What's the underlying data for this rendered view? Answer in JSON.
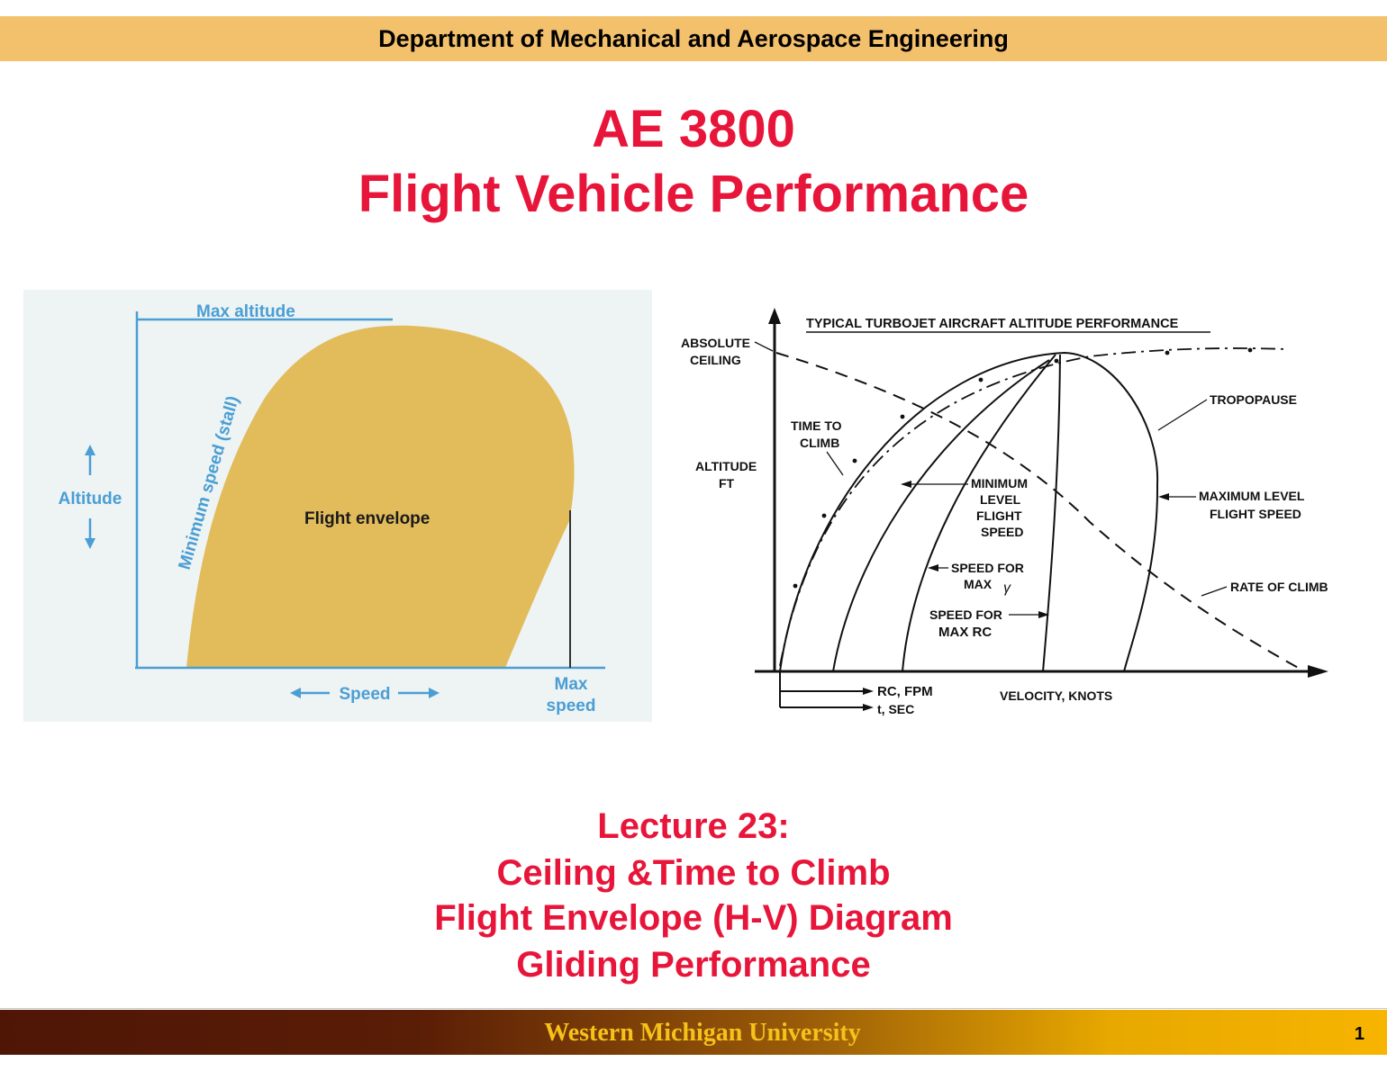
{
  "header": {
    "text": "Department of Mechanical and Aerospace Engineering"
  },
  "title": {
    "course": "AE 3800",
    "name": "Flight Vehicle Performance"
  },
  "fig_envelope": {
    "max_altitude": "Max altitude",
    "altitude": "Altitude",
    "min_speed": "Minimum speed (stall)",
    "envelope": "Flight envelope",
    "speed": "Speed",
    "max_speed_1": "Max",
    "max_speed_2": "speed",
    "fill_color": "#e2bc5b",
    "label_color": "#4a9ed4"
  },
  "fig_turbojet": {
    "title": "TYPICAL TURBOJET AIRCRAFT ALTITUDE PERFORMANCE",
    "absolute_ceiling_1": "ABSOLUTE",
    "absolute_ceiling_2": "CEILING",
    "time_to_climb_1": "TIME TO",
    "time_to_climb_2": "CLIMB",
    "altitude_1": "ALTITUDE",
    "altitude_2": "FT",
    "min_level_1": "MINIMUM",
    "min_level_2": "LEVEL",
    "min_level_3": "FLIGHT",
    "min_level_4": "SPEED",
    "max_gamma_1": "SPEED FOR",
    "max_gamma_2": "MAX",
    "gamma": "γ",
    "max_rc_1": "SPEED FOR",
    "max_rc_2": "MAX RC",
    "tropopause": "TROPOPAUSE",
    "max_level_1": "MAXIMUM LEVEL",
    "max_level_2": "FLIGHT SPEED",
    "rate_of_climb": "RATE OF CLIMB",
    "rc_fpm": "RC, FPM",
    "t_sec": "t, SEC",
    "velocity": "VELOCITY, KNOTS"
  },
  "lecture": {
    "line1": "Lecture 23:",
    "line2": "Ceiling &Time to Climb",
    "line3": "Flight Envelope (H-V) Diagram",
    "line4": "Gliding Performance"
  },
  "footer": {
    "university": "Western Michigan University",
    "page": "1"
  }
}
